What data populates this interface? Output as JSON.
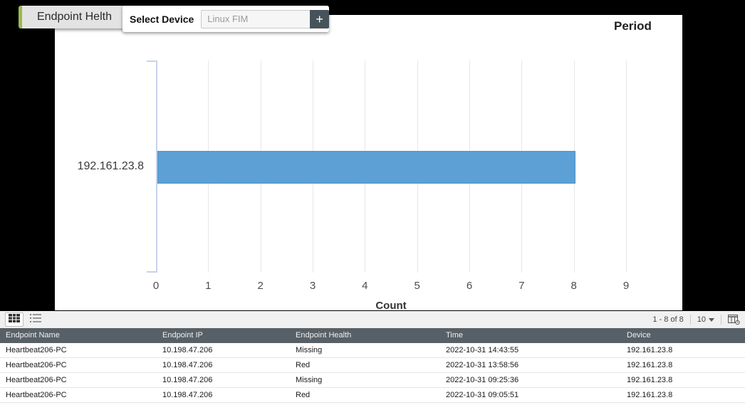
{
  "tab": {
    "label": "Endpoint Helth"
  },
  "device_selector": {
    "label": "Select Device",
    "placeholder": "Linux FIM",
    "add_button": "+"
  },
  "period_label": "Period",
  "chart_data": {
    "type": "bar",
    "orientation": "horizontal",
    "title": "",
    "categories": [
      "192.161.23.8"
    ],
    "values": [
      8
    ],
    "xlabel": "Count",
    "ylabel": "",
    "x_ticks": [
      0,
      1,
      2,
      3,
      4,
      5,
      6,
      7,
      8,
      9
    ],
    "xlim": [
      0,
      9
    ],
    "grid": true,
    "legend": false,
    "bar_color": "#5ca0d6"
  },
  "table": {
    "view_icons": [
      "table-view-icon",
      "list-view-icon"
    ],
    "pagination": {
      "range": "1 - 8 of 8",
      "page_size": "10",
      "column_icon": "column-chooser-icon"
    },
    "columns": [
      "Endpoint Name",
      "Endpoint IP",
      "Endpoint Health",
      "Time",
      "Device"
    ],
    "rows": [
      [
        "Heartbeat206-PC",
        "10.198.47.206",
        "Missing",
        "2022-10-31 14:43:55",
        "192.161.23.8"
      ],
      [
        "Heartbeat206-PC",
        "10.198.47.206",
        "Red",
        "2022-10-31 13:58:56",
        "192.161.23.8"
      ],
      [
        "Heartbeat206-PC",
        "10.198.47.206",
        "Missing",
        "2022-10-31 09:25:36",
        "192.161.23.8"
      ],
      [
        "Heartbeat206-PC",
        "10.198.47.206",
        "Red",
        "2022-10-31 09:05:51",
        "192.161.23.8"
      ]
    ]
  },
  "colors": {
    "bar": "#5ca0d6",
    "tab_accent_green": "#9bba50",
    "table_header_bg": "#576067",
    "toolbar_bg": "#f0f0f0",
    "axis": "#c9d2ea",
    "add_button_bg": "#47535b"
  }
}
